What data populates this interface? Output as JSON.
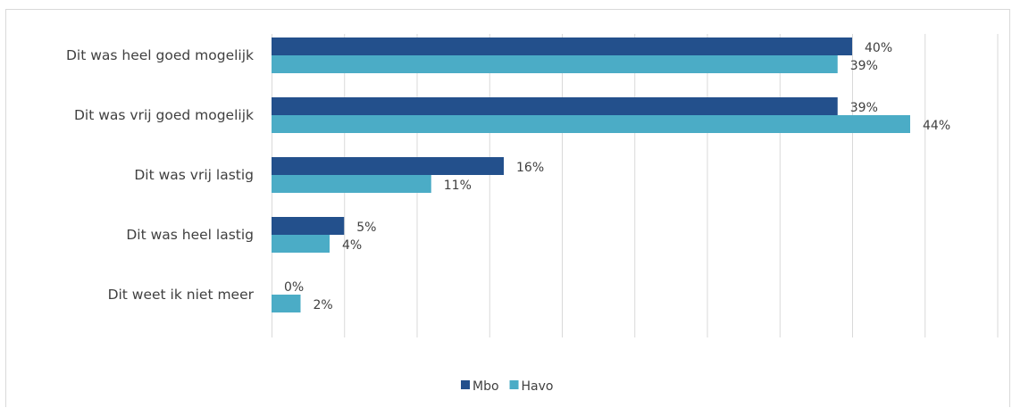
{
  "chart_data": {
    "type": "bar",
    "orientation": "horizontal",
    "categories": [
      "Dit was heel goed mogelijk",
      "Dit was vrij goed mogelijk",
      "Dit was vrij lastig",
      "Dit was heel lastig",
      "Dit weet ik niet meer"
    ],
    "series": [
      {
        "name": "Mbo",
        "values": [
          40,
          39,
          16,
          5,
          0
        ],
        "labels": [
          "40%",
          "39%",
          "16%",
          "5%",
          "0%"
        ],
        "color": "#23508c"
      },
      {
        "name": "Havo",
        "values": [
          39,
          44,
          11,
          4,
          2
        ],
        "labels": [
          "39%",
          "44%",
          "11%",
          "4%",
          "2%"
        ],
        "color": "#4bacc6"
      }
    ],
    "xlim": [
      0,
      50
    ],
    "x_gridlines": [
      0,
      5,
      10,
      15,
      20,
      25,
      30,
      35,
      40,
      45,
      50
    ],
    "grid": true,
    "legend_position": "bottom",
    "title": "",
    "xlabel": "",
    "ylabel": ""
  }
}
